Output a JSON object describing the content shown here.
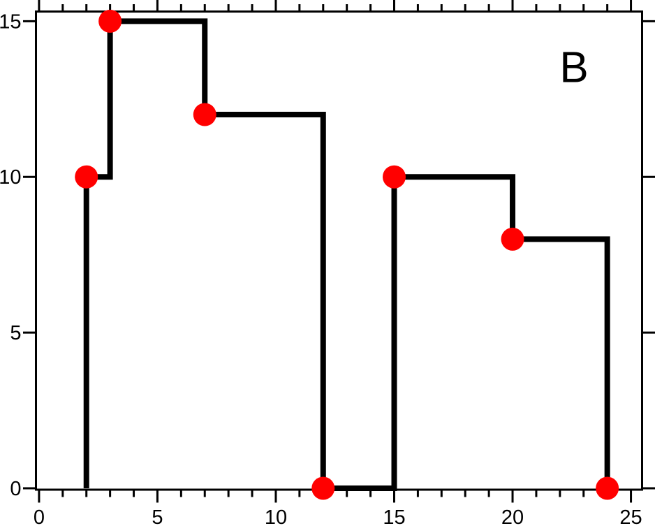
{
  "chart_data": {
    "type": "line",
    "line_style": "step-post",
    "title": "",
    "xlabel": "",
    "ylabel": "",
    "xlim": [
      -0.13,
      25.47
    ],
    "ylim": [
      -0.045,
      15.31
    ],
    "points": [
      [
        2,
        10
      ],
      [
        3,
        15
      ],
      [
        7,
        12
      ],
      [
        12,
        0
      ],
      [
        15,
        10
      ],
      [
        20,
        8
      ],
      [
        24,
        0
      ]
    ],
    "line_start": [
      2,
      0
    ],
    "x_major_ticks": [
      0,
      5,
      10,
      15,
      20,
      25
    ],
    "x_tick_labels": [
      "0",
      "5",
      "10",
      "15",
      "20",
      "25"
    ],
    "x_minor_ticks": [
      1,
      2,
      3,
      4,
      6,
      7,
      8,
      9,
      11,
      12,
      13,
      14,
      16,
      17,
      18,
      19,
      21,
      22,
      23,
      24
    ],
    "y_major_ticks": [
      0,
      5,
      10,
      15
    ],
    "y_tick_labels": [
      "0",
      "5",
      "10",
      "15"
    ],
    "grid": false,
    "legend": "none",
    "annotation": {
      "text": "B"
    },
    "line_width": 8,
    "marker_radius": 16.5,
    "colors": {
      "line": "#000000",
      "marker": "#ff0000",
      "axis": "#000000",
      "tick_label": "#000000",
      "background": "#ffffff"
    }
  }
}
